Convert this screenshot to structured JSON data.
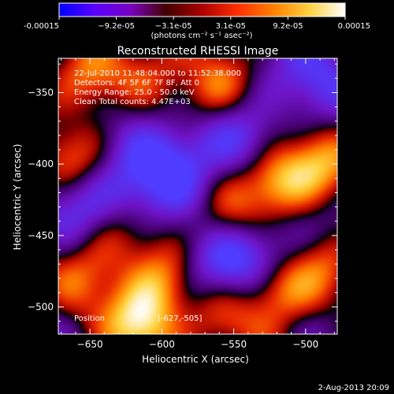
{
  "chart_data": {
    "type": "heatmap",
    "title": "Reconstructed RHESSI Image",
    "xlabel": "Heliocentric X (arcsec)",
    "ylabel": "Heliocentric Y (arcsec)",
    "xlim": [
      -672,
      -478
    ],
    "ylim": [
      -519,
      -326
    ],
    "x_ticks": [
      -650,
      -600,
      -550,
      -500
    ],
    "y_ticks": [
      -350,
      -400,
      -450,
      -500
    ],
    "x_tick_labels": [
      "−650",
      "−600",
      "−550",
      "−500"
    ],
    "y_tick_labels": [
      "−350",
      "−400",
      "−450",
      "−500"
    ],
    "colorbar": {
      "range": [
        -0.00015,
        0.00015
      ],
      "tick_labels": [
        "-0.00015",
        "−9.2e-05",
        "−3.1e-05",
        "3.1e-05",
        "9.2e-05",
        "0.00015"
      ],
      "unit_label": "(photons cm⁻² s⁻¹ asec⁻²)",
      "colors": [
        "#0000ff",
        "#5a00ff",
        "#7a00c0",
        "#440000",
        "#aa0000",
        "#ff3000",
        "#ff8000",
        "#ffd040",
        "#ffffff"
      ]
    },
    "annotations": [
      "22-Jul-2010 11:48:04.000 to 11:52:38.000",
      "Detectors: 4F 5F 6F 7F 8F, Att 0",
      "Energy Range: 25.0 - 50.0 keV",
      "Clean     Total counts: 4.47E+03"
    ],
    "position_label": "Position",
    "position_value": "[-627,-505]",
    "bright_sources": [
      {
        "x": -520,
        "y": -412,
        "level": 1.0
      },
      {
        "x": -615,
        "y": -512,
        "level": 1.0
      },
      {
        "x": -520,
        "y": -488,
        "level": 0.95
      },
      {
        "x": -600,
        "y": -482,
        "level": 0.75
      },
      {
        "x": -650,
        "y": -340,
        "level": 0.7
      },
      {
        "x": -565,
        "y": -348,
        "level": 0.7
      },
      {
        "x": -490,
        "y": -400,
        "level": 0.7
      },
      {
        "x": -555,
        "y": -440,
        "level": 0.7
      },
      {
        "x": -665,
        "y": -400,
        "level": 0.6
      },
      {
        "x": -630,
        "y": -450,
        "level": 0.55
      },
      {
        "x": -560,
        "y": -510,
        "level": 0.5
      },
      {
        "x": -490,
        "y": -470,
        "level": 0.5
      },
      {
        "x": -600,
        "y": -330,
        "level": 0.4
      },
      {
        "x": -655,
        "y": -480,
        "level": 0.5
      }
    ],
    "dim_regions": [
      {
        "x": -590,
        "y": -395,
        "level": -0.7
      },
      {
        "x": -620,
        "y": -420,
        "level": -0.6
      },
      {
        "x": -560,
        "y": -470,
        "level": -0.8
      },
      {
        "x": -525,
        "y": -460,
        "level": -0.6
      },
      {
        "x": -495,
        "y": -340,
        "level": -0.6
      },
      {
        "x": -660,
        "y": -430,
        "level": -0.5
      },
      {
        "x": -545,
        "y": -385,
        "level": -0.5
      }
    ]
  },
  "footer": {
    "timestamp": "2-Aug-2013 20:09"
  }
}
